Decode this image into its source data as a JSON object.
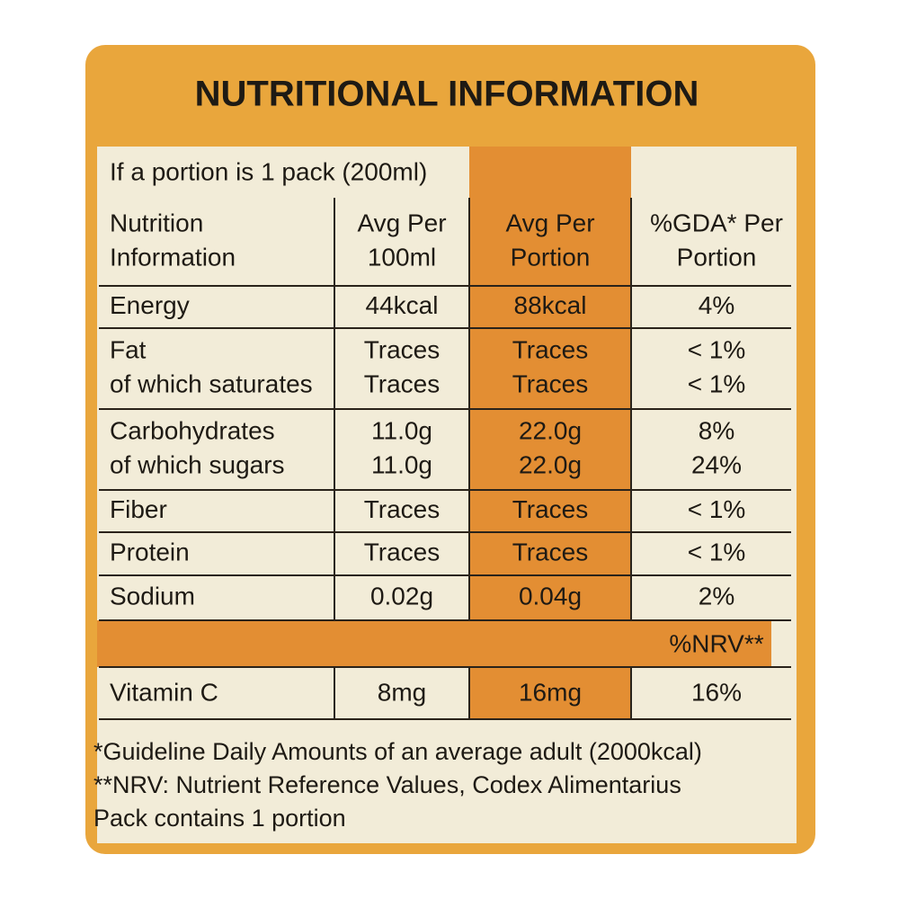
{
  "title": "NUTRITIONAL INFORMATION",
  "portion_note": "If a portion is 1 pack (200ml)",
  "table": {
    "header": [
      [
        "Nutrition",
        "Information"
      ],
      [
        "Avg Per",
        "100ml"
      ],
      [
        "Avg Per",
        "Portion"
      ],
      [
        "%GDA* Per",
        "Portion"
      ]
    ],
    "rows": [
      [
        [
          "Energy"
        ],
        [
          "44kcal"
        ],
        [
          "88kcal"
        ],
        [
          "4%"
        ]
      ],
      [
        [
          "Fat",
          "of which saturates"
        ],
        [
          "Traces",
          "Traces"
        ],
        [
          "Traces",
          "Traces"
        ],
        [
          "< 1%",
          "< 1%"
        ]
      ],
      [
        [
          "Carbohydrates",
          "of which sugars"
        ],
        [
          "11.0g",
          "11.0g"
        ],
        [
          "22.0g",
          "22.0g"
        ],
        [
          "8%",
          "24%"
        ]
      ],
      [
        [
          "Fiber"
        ],
        [
          "Traces"
        ],
        [
          "Traces"
        ],
        [
          "< 1%"
        ]
      ],
      [
        [
          "Protein"
        ],
        [
          "Traces"
        ],
        [
          "Traces"
        ],
        [
          "< 1%"
        ]
      ],
      [
        [
          "Sodium"
        ],
        [
          "0.02g"
        ],
        [
          "0.04g"
        ],
        [
          "2%"
        ]
      ]
    ],
    "nrv_label": "%NRV**",
    "vitamin_row": [
      "Vitamin C",
      "8mg",
      "16mg",
      "16%"
    ]
  },
  "footnotes": [
    "*Guideline Daily Amounts of an average adult (2000kcal)",
    "**NRV: Nutrient Reference Values, Codex Alimentarius",
    "Pack contains 1 portion"
  ]
}
